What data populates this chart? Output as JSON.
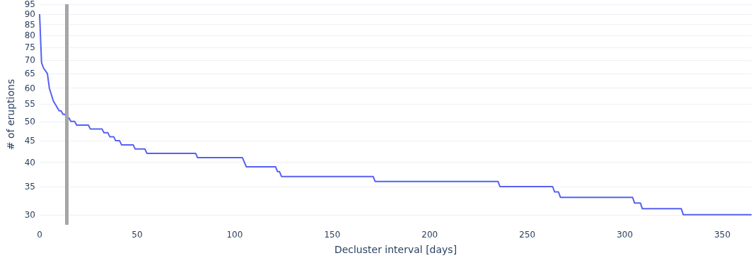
{
  "chart_data": {
    "type": "line",
    "xlabel": "Decluster interval [days]",
    "ylabel": "# of eruptions",
    "series": [
      {
        "color": "#5660f5",
        "x": [
          0,
          1,
          2,
          4,
          5,
          7,
          9,
          10,
          11,
          12,
          13,
          14,
          15,
          16,
          18,
          19,
          25,
          26,
          32,
          33,
          35,
          36,
          38,
          39,
          41,
          42,
          48,
          49,
          54,
          55,
          80,
          81,
          104,
          106,
          121,
          122,
          123,
          124,
          171,
          172,
          235,
          236,
          263,
          264,
          266,
          267,
          304,
          305,
          308,
          309,
          329,
          330,
          365
        ],
        "values": [
          90,
          69,
          67,
          65,
          60,
          56,
          54,
          53,
          53,
          52,
          52,
          51,
          51,
          50,
          50,
          49,
          49,
          48,
          48,
          47,
          47,
          46,
          46,
          45,
          45,
          44,
          44,
          43,
          43,
          42,
          42,
          41,
          41,
          39,
          39,
          38,
          38,
          37,
          37,
          36,
          36,
          35,
          35,
          34,
          34,
          33,
          33,
          32,
          32,
          31,
          31,
          30,
          30
        ]
      }
    ],
    "xlim": [
      0,
      365
    ],
    "xticks": [
      0,
      50,
      100,
      150,
      200,
      250,
      300,
      350
    ],
    "ylim": [
      28.4,
      95
    ],
    "yticks": [
      30,
      35,
      40,
      45,
      50,
      55,
      60,
      65,
      70,
      75,
      80,
      85,
      90,
      95
    ],
    "log": "y",
    "grid": "y",
    "marker": "none",
    "line_style": "solid",
    "ref_lines": [
      {
        "axis": "x",
        "value": 14,
        "label": null,
        "color": "#a6a6a6"
      }
    ]
  }
}
